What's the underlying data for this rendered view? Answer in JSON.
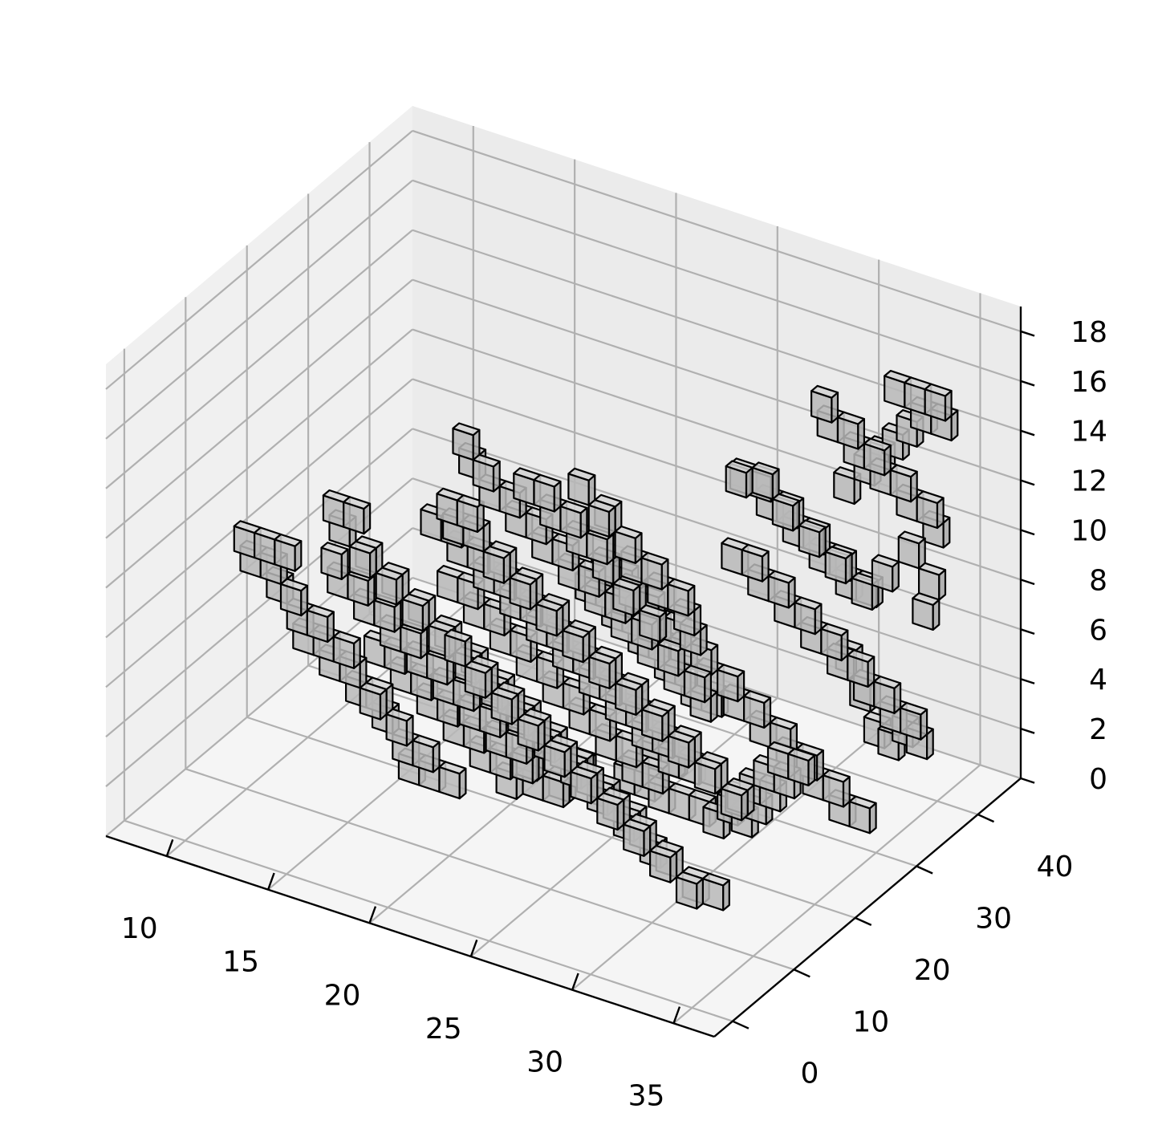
{
  "chart_data": {
    "type": "voxel",
    "title": "",
    "xlabel": "",
    "ylabel": "",
    "zlabel": "",
    "x_ticks": [
      "10",
      "15",
      "20",
      "25",
      "30",
      "35"
    ],
    "y_ticks": [
      "0",
      "10",
      "20",
      "30",
      "40"
    ],
    "z_ticks": [
      "0",
      "2",
      "4",
      "6",
      "8",
      "10",
      "12",
      "14",
      "16",
      "18"
    ],
    "xlim": [
      7,
      37
    ],
    "ylim": [
      -3,
      47
    ],
    "zlim": [
      0,
      19
    ],
    "grid": true,
    "colors": {
      "pane_left": "#f0f0f0",
      "pane_back": "#ebebeb",
      "pane_floor": "#f5f5f5",
      "grid": "#b0b0b0",
      "axis": "#000000",
      "voxel_face": "#c8c8c8",
      "voxel_edge": "#000000"
    },
    "voxels": [
      [
        10,
        8,
        10
      ],
      [
        11,
        8,
        10
      ],
      [
        10,
        9,
        9
      ],
      [
        11,
        9,
        9
      ],
      [
        12,
        8,
        10
      ],
      [
        12,
        9,
        8
      ],
      [
        11,
        10,
        8
      ],
      [
        12,
        10,
        7
      ],
      [
        13,
        10,
        7
      ],
      [
        12,
        11,
        6
      ],
      [
        13,
        11,
        6
      ],
      [
        14,
        11,
        6
      ],
      [
        13,
        12,
        5
      ],
      [
        14,
        12,
        5
      ],
      [
        15,
        12,
        4
      ],
      [
        14,
        13,
        4
      ],
      [
        15,
        13,
        4
      ],
      [
        16,
        13,
        3
      ],
      [
        15,
        14,
        3
      ],
      [
        16,
        14,
        2
      ],
      [
        17,
        14,
        2
      ],
      [
        16,
        15,
        1
      ],
      [
        17,
        15,
        1
      ],
      [
        18,
        15,
        1
      ],
      [
        14,
        9,
        10
      ],
      [
        14,
        10,
        9
      ],
      [
        15,
        10,
        9
      ],
      [
        15,
        11,
        8
      ],
      [
        16,
        11,
        8
      ],
      [
        16,
        12,
        7
      ],
      [
        17,
        12,
        7
      ],
      [
        17,
        13,
        6
      ],
      [
        18,
        13,
        6
      ],
      [
        18,
        14,
        5
      ],
      [
        19,
        14,
        5
      ],
      [
        19,
        15,
        4
      ],
      [
        20,
        15,
        4
      ],
      [
        20,
        16,
        3
      ],
      [
        21,
        16,
        3
      ],
      [
        21,
        17,
        2
      ],
      [
        15,
        6,
        13
      ],
      [
        16,
        6,
        13
      ],
      [
        15,
        7,
        12
      ],
      [
        16,
        7,
        11
      ],
      [
        16,
        8,
        11
      ],
      [
        17,
        8,
        10
      ],
      [
        17,
        9,
        10
      ],
      [
        18,
        9,
        9
      ],
      [
        18,
        10,
        9
      ],
      [
        19,
        10,
        8
      ],
      [
        19,
        11,
        8
      ],
      [
        20,
        11,
        7
      ],
      [
        20,
        12,
        7
      ],
      [
        21,
        12,
        6
      ],
      [
        21,
        13,
        6
      ],
      [
        22,
        13,
        5
      ],
      [
        22,
        14,
        5
      ],
      [
        23,
        14,
        4
      ],
      [
        23,
        15,
        4
      ],
      [
        24,
        15,
        3
      ],
      [
        24,
        16,
        3
      ],
      [
        25,
        16,
        2
      ],
      [
        25,
        17,
        2
      ],
      [
        26,
        17,
        1
      ],
      [
        26,
        18,
        1
      ],
      [
        27,
        18,
        0
      ],
      [
        20,
        8,
        14
      ],
      [
        21,
        8,
        14
      ],
      [
        20,
        9,
        13
      ],
      [
        21,
        9,
        13
      ],
      [
        22,
        9,
        12
      ],
      [
        22,
        10,
        12
      ],
      [
        23,
        10,
        11
      ],
      [
        23,
        11,
        11
      ],
      [
        24,
        11,
        10
      ],
      [
        24,
        12,
        10
      ],
      [
        25,
        12,
        9
      ],
      [
        25,
        13,
        9
      ],
      [
        26,
        13,
        8
      ],
      [
        26,
        14,
        8
      ],
      [
        27,
        14,
        7
      ],
      [
        27,
        15,
        7
      ],
      [
        28,
        15,
        6
      ],
      [
        28,
        16,
        6
      ],
      [
        29,
        16,
        5
      ],
      [
        29,
        17,
        5
      ],
      [
        30,
        17,
        4
      ],
      [
        30,
        18,
        4
      ],
      [
        31,
        18,
        3
      ],
      [
        31,
        19,
        3
      ],
      [
        22,
        4,
        18
      ],
      [
        23,
        4,
        17
      ],
      [
        22,
        5,
        17
      ],
      [
        23,
        5,
        16
      ],
      [
        24,
        5,
        16
      ],
      [
        24,
        6,
        15
      ],
      [
        25,
        6,
        15
      ],
      [
        25,
        7,
        14
      ],
      [
        26,
        7,
        14
      ],
      [
        26,
        8,
        13
      ],
      [
        27,
        8,
        13
      ],
      [
        27,
        9,
        12
      ],
      [
        28,
        9,
        12
      ],
      [
        28,
        10,
        11
      ],
      [
        29,
        10,
        11
      ],
      [
        29,
        11,
        10
      ],
      [
        30,
        11,
        10
      ],
      [
        30,
        12,
        9
      ],
      [
        31,
        12,
        9
      ],
      [
        31,
        13,
        8
      ],
      [
        25,
        4,
        17
      ],
      [
        26,
        4,
        17
      ],
      [
        26,
        5,
        16
      ],
      [
        27,
        5,
        16
      ],
      [
        27,
        6,
        15
      ],
      [
        28,
        6,
        15
      ],
      [
        28,
        7,
        14
      ],
      [
        29,
        7,
        13
      ],
      [
        29,
        8,
        13
      ],
      [
        30,
        8,
        12
      ],
      [
        28,
        3,
        18
      ],
      [
        29,
        3,
        17
      ],
      [
        29,
        4,
        17
      ],
      [
        30,
        4,
        16
      ],
      [
        30,
        5,
        15
      ],
      [
        31,
        5,
        15
      ],
      [
        31,
        6,
        14
      ],
      [
        32,
        6,
        14
      ],
      [
        32,
        7,
        13
      ],
      [
        32,
        8,
        12
      ],
      [
        18,
        12,
        12
      ],
      [
        19,
        12,
        12
      ],
      [
        19,
        13,
        11
      ],
      [
        20,
        13,
        11
      ],
      [
        20,
        14,
        10
      ],
      [
        21,
        14,
        10
      ],
      [
        21,
        15,
        9
      ],
      [
        22,
        15,
        9
      ],
      [
        22,
        16,
        8
      ],
      [
        23,
        16,
        8
      ],
      [
        23,
        17,
        7
      ],
      [
        24,
        17,
        7
      ],
      [
        24,
        18,
        6
      ],
      [
        25,
        18,
        6
      ],
      [
        25,
        19,
        5
      ],
      [
        26,
        19,
        5
      ],
      [
        26,
        20,
        4
      ],
      [
        27,
        20,
        4
      ],
      [
        27,
        21,
        3
      ],
      [
        28,
        21,
        3
      ],
      [
        17,
        18,
        8
      ],
      [
        18,
        18,
        8
      ],
      [
        18,
        19,
        7
      ],
      [
        19,
        19,
        7
      ],
      [
        19,
        20,
        6
      ],
      [
        20,
        20,
        6
      ],
      [
        20,
        21,
        5
      ],
      [
        21,
        21,
        5
      ],
      [
        21,
        22,
        4
      ],
      [
        22,
        22,
        4
      ],
      [
        22,
        23,
        3
      ],
      [
        23,
        23,
        3
      ],
      [
        23,
        24,
        2
      ],
      [
        24,
        24,
        2
      ],
      [
        24,
        25,
        1
      ],
      [
        25,
        25,
        1
      ],
      [
        25,
        26,
        0
      ],
      [
        26,
        26,
        0
      ],
      [
        27,
        26,
        0
      ],
      [
        28,
        25,
        0
      ],
      [
        29,
        24,
        1
      ],
      [
        30,
        23,
        1
      ],
      [
        30,
        22,
        2
      ],
      [
        31,
        22,
        2
      ],
      [
        31,
        21,
        3
      ],
      [
        32,
        21,
        3
      ],
      [
        32,
        20,
        4
      ],
      [
        33,
        20,
        4
      ],
      [
        33,
        19,
        5
      ],
      [
        34,
        19,
        5
      ],
      [
        24,
        20,
        10
      ],
      [
        25,
        20,
        10
      ],
      [
        25,
        21,
        9
      ],
      [
        26,
        21,
        9
      ],
      [
        26,
        22,
        8
      ],
      [
        27,
        22,
        8
      ],
      [
        27,
        23,
        7
      ],
      [
        28,
        23,
        7
      ],
      [
        28,
        24,
        6
      ],
      [
        29,
        24,
        6
      ],
      [
        29,
        25,
        5
      ],
      [
        30,
        25,
        5
      ],
      [
        30,
        26,
        4
      ],
      [
        31,
        26,
        4
      ],
      [
        31,
        27,
        3
      ],
      [
        32,
        27,
        3
      ],
      [
        32,
        28,
        2
      ],
      [
        33,
        28,
        2
      ],
      [
        33,
        29,
        1
      ],
      [
        34,
        29,
        1
      ],
      [
        28,
        28,
        10
      ],
      [
        29,
        28,
        10
      ],
      [
        29,
        29,
        9
      ],
      [
        30,
        29,
        9
      ],
      [
        30,
        30,
        8
      ],
      [
        31,
        30,
        8
      ],
      [
        31,
        31,
        7
      ],
      [
        32,
        31,
        7
      ],
      [
        32,
        32,
        6
      ],
      [
        33,
        32,
        6
      ],
      [
        33,
        33,
        5
      ],
      [
        34,
        33,
        5
      ],
      [
        34,
        34,
        4
      ],
      [
        35,
        34,
        4
      ],
      [
        35,
        35,
        3
      ],
      [
        34,
        36,
        3
      ],
      [
        33,
        37,
        2
      ],
      [
        32,
        38,
        2
      ],
      [
        31,
        39,
        3
      ],
      [
        30,
        40,
        4
      ],
      [
        26,
        36,
        11
      ],
      [
        27,
        36,
        11
      ],
      [
        27,
        37,
        10
      ],
      [
        28,
        37,
        10
      ],
      [
        28,
        38,
        9
      ],
      [
        29,
        38,
        9
      ],
      [
        29,
        39,
        8
      ],
      [
        30,
        39,
        8
      ],
      [
        30,
        40,
        7
      ],
      [
        31,
        40,
        7
      ],
      [
        30,
        36,
        15
      ],
      [
        30,
        37,
        14
      ],
      [
        31,
        37,
        14
      ],
      [
        31,
        38,
        13
      ],
      [
        32,
        38,
        13
      ],
      [
        32,
        39,
        12
      ],
      [
        33,
        39,
        12
      ],
      [
        33,
        40,
        11
      ],
      [
        34,
        40,
        11
      ],
      [
        34,
        41,
        10
      ],
      [
        33,
        38,
        16
      ],
      [
        34,
        38,
        16
      ],
      [
        35,
        38,
        16
      ],
      [
        34,
        39,
        15
      ],
      [
        35,
        39,
        15
      ],
      [
        33,
        40,
        14
      ],
      [
        32,
        41,
        13
      ],
      [
        31,
        42,
        12
      ],
      [
        30,
        43,
        11
      ],
      [
        29,
        43,
        10
      ],
      [
        35,
        36,
        8
      ],
      [
        35,
        37,
        9
      ],
      [
        34,
        37,
        10
      ],
      [
        33,
        36,
        9
      ],
      [
        32,
        36,
        8
      ],
      [
        31,
        35,
        9
      ],
      [
        30,
        34,
        10
      ],
      [
        29,
        33,
        11
      ],
      [
        28,
        33,
        12
      ],
      [
        27,
        32,
        12
      ],
      [
        22,
        24,
        8
      ],
      [
        23,
        24,
        8
      ],
      [
        23,
        25,
        7
      ],
      [
        24,
        25,
        7
      ],
      [
        24,
        26,
        6
      ],
      [
        25,
        26,
        6
      ],
      [
        25,
        27,
        5
      ],
      [
        26,
        27,
        5
      ],
      [
        26,
        28,
        4
      ],
      [
        27,
        28,
        4
      ],
      [
        14,
        16,
        5
      ],
      [
        15,
        16,
        5
      ],
      [
        15,
        17,
        4
      ],
      [
        16,
        17,
        4
      ],
      [
        16,
        18,
        3
      ],
      [
        17,
        18,
        3
      ],
      [
        17,
        19,
        2
      ],
      [
        18,
        19,
        2
      ],
      [
        18,
        20,
        1
      ],
      [
        19,
        20,
        1
      ],
      [
        20,
        22,
        0
      ],
      [
        21,
        22,
        0
      ],
      [
        21,
        23,
        0
      ],
      [
        22,
        23,
        1
      ],
      [
        19,
        21,
        0
      ],
      [
        20,
        21,
        1
      ],
      [
        23,
        27,
        0
      ],
      [
        24,
        27,
        0
      ],
      [
        24,
        28,
        1
      ],
      [
        25,
        28,
        1
      ],
      [
        21,
        6,
        9
      ],
      [
        22,
        6,
        8
      ],
      [
        22,
        7,
        8
      ],
      [
        23,
        7,
        7
      ],
      [
        23,
        8,
        7
      ],
      [
        24,
        8,
        6
      ],
      [
        24,
        9,
        6
      ],
      [
        25,
        9,
        5
      ],
      [
        25,
        10,
        5
      ],
      [
        26,
        10,
        4
      ],
      [
        26,
        11,
        4
      ],
      [
        27,
        11,
        3
      ],
      [
        27,
        12,
        3
      ],
      [
        28,
        12,
        2
      ],
      [
        28,
        13,
        2
      ],
      [
        29,
        13,
        1
      ],
      [
        29,
        14,
        1
      ],
      [
        30,
        14,
        0
      ],
      [
        30,
        15,
        0
      ],
      [
        31,
        15,
        0
      ]
    ]
  }
}
